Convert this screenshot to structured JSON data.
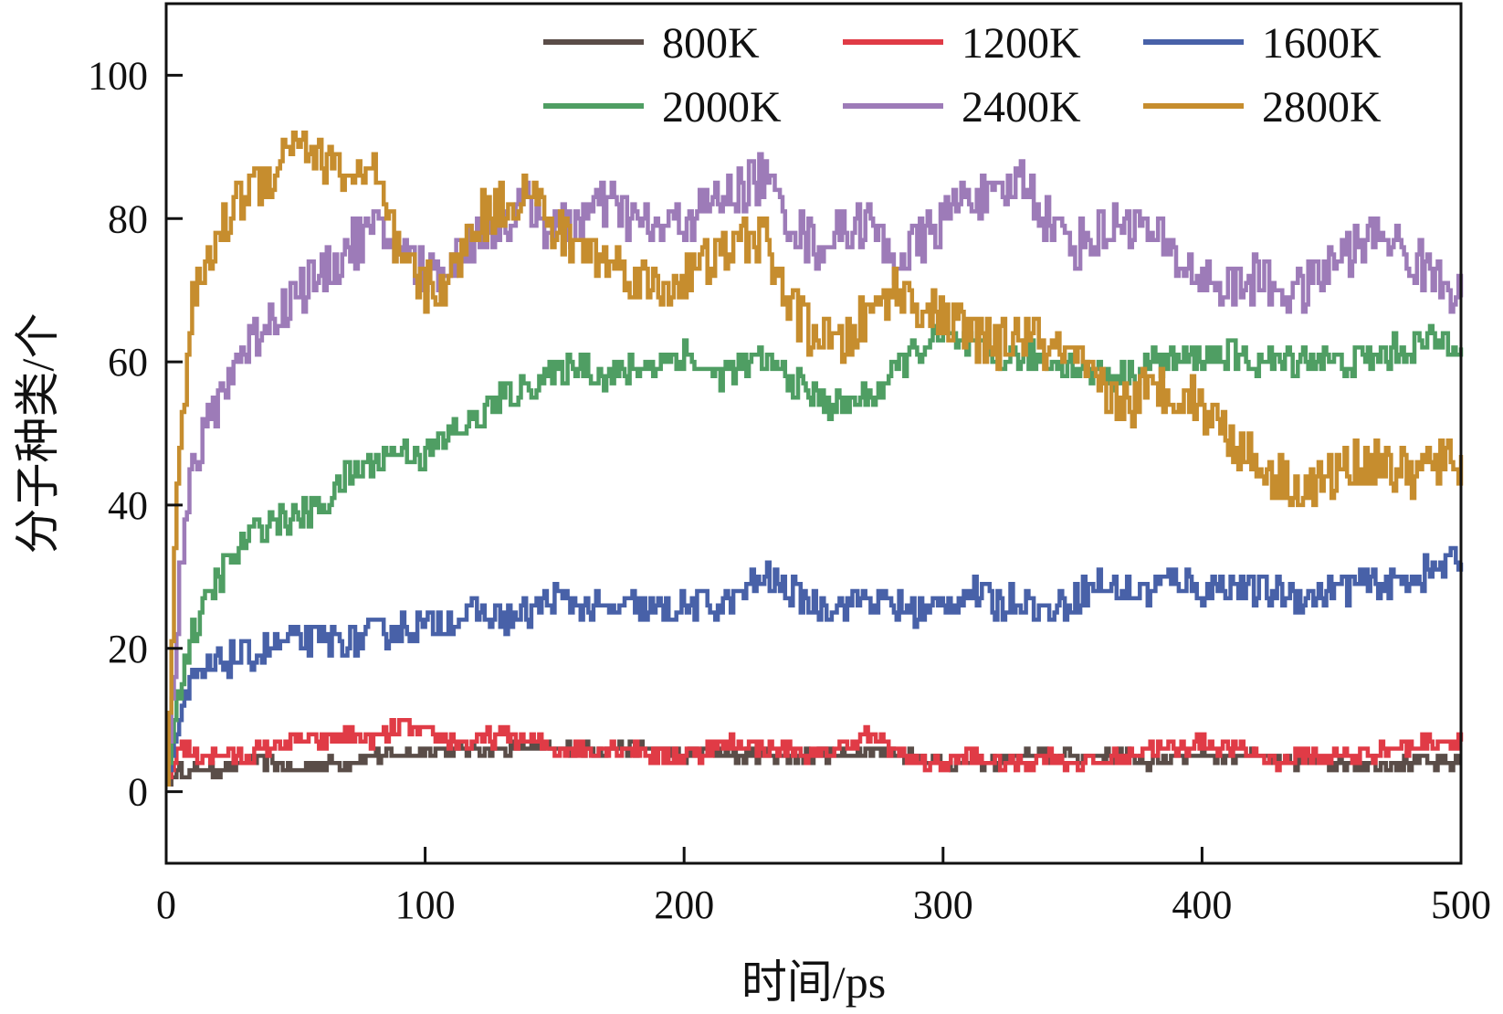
{
  "chart_data": {
    "type": "line",
    "title": "",
    "xlabel": "时间/ps",
    "ylabel": "分子种类/个",
    "xlim": [
      0,
      500
    ],
    "ylim": [
      -10,
      110
    ],
    "xticks": [
      0,
      100,
      200,
      300,
      400,
      500
    ],
    "yticks": [
      0,
      20,
      40,
      60,
      80,
      100
    ],
    "grid": false,
    "legend_position": "top-right",
    "x": [
      0,
      5,
      10,
      20,
      30,
      40,
      50,
      60,
      70,
      80,
      90,
      100,
      110,
      120,
      130,
      140,
      150,
      160,
      170,
      180,
      190,
      200,
      210,
      220,
      230,
      240,
      250,
      260,
      270,
      280,
      290,
      300,
      310,
      320,
      330,
      340,
      350,
      360,
      370,
      380,
      390,
      400,
      410,
      420,
      430,
      440,
      450,
      460,
      470,
      480,
      490,
      500
    ],
    "series": [
      {
        "name": "800K",
        "color": "#5a4d48",
        "values": [
          1,
          3,
          3,
          3,
          4,
          4,
          3,
          4,
          4,
          5,
          5,
          6,
          6,
          6,
          6,
          6,
          6,
          6,
          6,
          6,
          6,
          5,
          6,
          5,
          5,
          5,
          5,
          5,
          6,
          5,
          5,
          4,
          4,
          4,
          5,
          5,
          5,
          5,
          5,
          4,
          5,
          5,
          5,
          5,
          4,
          4,
          4,
          4,
          4,
          4,
          4,
          4
        ]
      },
      {
        "name": "1200K",
        "color": "#e03b46",
        "values": [
          1,
          7,
          5,
          5,
          5,
          6,
          7,
          7,
          8,
          7,
          9,
          8,
          7,
          7,
          8,
          7,
          6,
          6,
          6,
          6,
          5,
          5,
          6,
          7,
          6,
          6,
          5,
          6,
          8,
          6,
          4,
          4,
          5,
          4,
          4,
          5,
          4,
          4,
          5,
          6,
          6,
          7,
          6,
          5,
          4,
          5,
          5,
          5,
          6,
          6,
          7,
          7
        ]
      },
      {
        "name": "1600K",
        "color": "#4861a8",
        "values": [
          1,
          10,
          15,
          18,
          19,
          20,
          21,
          21,
          21,
          22,
          23,
          23,
          24,
          25,
          24,
          25,
          27,
          26,
          25,
          26,
          25,
          26,
          26,
          27,
          30,
          28,
          26,
          26,
          27,
          26,
          25,
          26,
          28,
          26,
          27,
          25,
          27,
          29,
          28,
          28,
          30,
          28,
          29,
          28,
          28,
          27,
          28,
          29,
          29,
          30,
          31,
          33
        ]
      },
      {
        "name": "2000K",
        "color": "#4f9e63",
        "values": [
          1,
          15,
          22,
          30,
          35,
          38,
          38,
          40,
          44,
          46,
          48,
          47,
          50,
          52,
          55,
          57,
          58,
          60,
          58,
          59,
          60,
          61,
          58,
          59,
          60,
          58,
          55,
          54,
          55,
          58,
          62,
          63,
          62,
          60,
          61,
          60,
          60,
          58,
          58,
          60,
          60,
          61,
          61,
          60,
          60,
          61,
          60,
          60,
          61,
          62,
          63,
          63
        ]
      },
      {
        "name": "2400K",
        "color": "#9d7bb8",
        "values": [
          1,
          30,
          45,
          55,
          62,
          66,
          70,
          72,
          76,
          78,
          76,
          72,
          74,
          78,
          80,
          82,
          78,
          80,
          82,
          80,
          78,
          80,
          82,
          84,
          86,
          80,
          76,
          78,
          80,
          74,
          76,
          80,
          84,
          82,
          86,
          80,
          76,
          78,
          80,
          78,
          74,
          72,
          70,
          72,
          70,
          70,
          74,
          76,
          78,
          74,
          72,
          70
        ]
      },
      {
        "name": "2800K",
        "color": "#c68d2e",
        "values": [
          1,
          50,
          68,
          78,
          84,
          86,
          92,
          88,
          86,
          86,
          74,
          70,
          72,
          80,
          82,
          84,
          78,
          76,
          74,
          72,
          70,
          72,
          74,
          76,
          78,
          68,
          64,
          62,
          66,
          70,
          68,
          66,
          64,
          62,
          64,
          62,
          60,
          56,
          54,
          56,
          56,
          54,
          50,
          46,
          44,
          42,
          44,
          46,
          46,
          44,
          46,
          46
        ]
      }
    ]
  }
}
